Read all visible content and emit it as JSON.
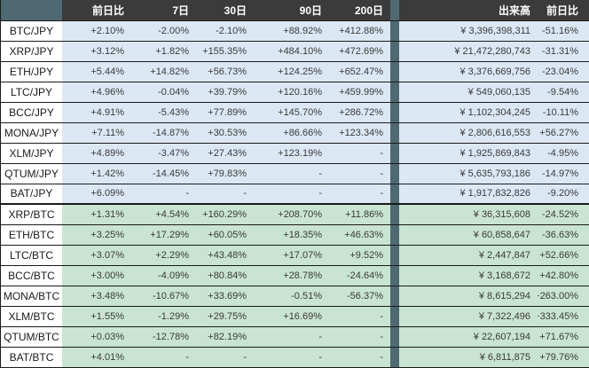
{
  "colors": {
    "header_bg": "#3b3b3b",
    "header_text": "#ffffff",
    "accent_teal": "#4e6972",
    "grid_line": "#1b1b1b",
    "value_text": "#3a3a3a",
    "jpy_row_bg": "#dbe8f4",
    "btc_row_bg": "#c9e4d2"
  },
  "chart_data": {
    "type": "table",
    "columns": [
      "前日比",
      "7日",
      "30日",
      "90日",
      "200日",
      "出来高",
      "前日比"
    ],
    "sections": [
      {
        "id": "jpy",
        "row_color": "#dbe8f4",
        "rows": [
          [
            "BTC/JPY",
            "+2.10%",
            "-2.00%",
            "-2.10%",
            "+88.92%",
            "+412.88%",
            "¥ 3,396,398,311",
            "-51.16%"
          ],
          [
            "XRP/JPY",
            "+3.12%",
            "+1.82%",
            "+155.35%",
            "+484.10%",
            "+472.69%",
            "¥ 21,472,280,743",
            "-31.31%"
          ],
          [
            "ETH/JPY",
            "+5.44%",
            "+14.82%",
            "+56.73%",
            "+124.25%",
            "+652.47%",
            "¥ 3,376,669,756",
            "-23.04%"
          ],
          [
            "LTC/JPY",
            "+4.96%",
            "-0.04%",
            "+39.79%",
            "+120.16%",
            "+459.99%",
            "¥ 549,060,135",
            "-9.54%"
          ],
          [
            "BCC/JPY",
            "+4.91%",
            "-5.43%",
            "+77.89%",
            "+145.70%",
            "+286.72%",
            "¥ 1,102,304,245",
            "-10.11%"
          ],
          [
            "MONA/JPY",
            "+7.11%",
            "-14.87%",
            "+30.53%",
            "+86.66%",
            "+123.34%",
            "¥ 2,806,616,553",
            "+56.27%"
          ],
          [
            "XLM/JPY",
            "+4.89%",
            "-3.47%",
            "+27.43%",
            "+123.19%",
            "-",
            "¥ 1,925,869,843",
            "-4.95%"
          ],
          [
            "QTUM/JPY",
            "+1.42%",
            "-14.45%",
            "+79.83%",
            "-",
            "-",
            "¥ 5,635,793,186",
            "-14.97%"
          ],
          [
            "BAT/JPY",
            "+6.09%",
            "-",
            "-",
            "-",
            "-",
            "¥ 1,917,832,826",
            "-9.20%"
          ]
        ]
      },
      {
        "id": "btc",
        "row_color": "#c9e4d2",
        "rows": [
          [
            "XRP/BTC",
            "+1.31%",
            "+4.54%",
            "+160.29%",
            "+208.70%",
            "+11.86%",
            "¥ 36,315,608",
            "-24.52%"
          ],
          [
            "ETH/BTC",
            "+3.25%",
            "+17.29%",
            "+60.05%",
            "+18.35%",
            "+46.63%",
            "¥ 60,858,647",
            "-36.63%"
          ],
          [
            "LTC/BTC",
            "+3.07%",
            "+2.29%",
            "+43.48%",
            "+17.07%",
            "+9.52%",
            "¥ 2,447,847",
            "+52.66%"
          ],
          [
            "BCC/BTC",
            "+3.00%",
            "-4.09%",
            "+80.84%",
            "+28.78%",
            "-24.64%",
            "¥ 3,168,672",
            "+42.80%"
          ],
          [
            "MONA/BTC",
            "+3.48%",
            "-10.67%",
            "+33.69%",
            "-0.51%",
            "-56.37%",
            "¥ 8,615,294",
            "+263.00%"
          ],
          [
            "XLM/BTC",
            "+1.55%",
            "-1.29%",
            "+29.75%",
            "+16.69%",
            "-",
            "¥ 7,322,496",
            "+333.45%"
          ],
          [
            "QTUM/BTC",
            "+0.03%",
            "-12.78%",
            "+82.19%",
            "-",
            "-",
            "¥ 22,607,194",
            "+71.67%"
          ],
          [
            "BAT/BTC",
            "+4.01%",
            "-",
            "-",
            "-",
            "-",
            "¥ 6,811,875",
            "+79.76%"
          ]
        ]
      }
    ]
  }
}
